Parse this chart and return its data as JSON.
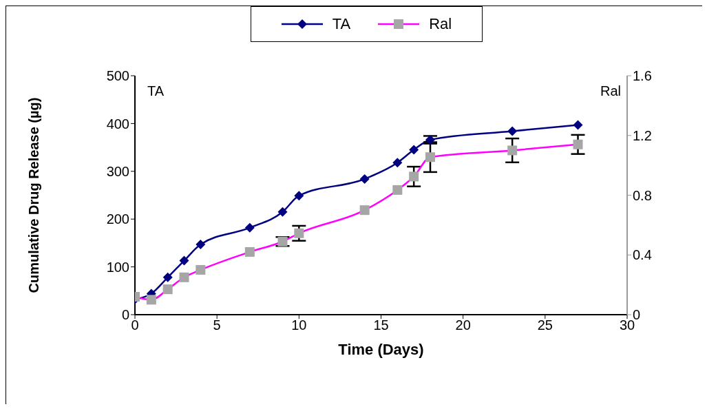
{
  "chart_data": {
    "type": "line",
    "xlabel": "Time (Days)",
    "ylabel": "Cumulative Drug Release (µg)",
    "xlim": [
      0,
      30
    ],
    "xticks": [
      0,
      5,
      10,
      15,
      20,
      25,
      30
    ],
    "ylim": [
      0,
      500
    ],
    "yticks": [
      0,
      100,
      200,
      300,
      400,
      500
    ],
    "y2lim": [
      0,
      1.6
    ],
    "y2ticks": [
      0,
      0.4,
      0.8,
      1.2,
      1.6
    ],
    "legend": "top",
    "annotations": [
      "TA",
      "Ral"
    ],
    "series": [
      {
        "name": "TA",
        "color": "#000080",
        "marker": "diamond",
        "x": [
          0,
          1,
          2,
          3,
          4,
          7,
          9,
          10,
          14,
          16,
          17,
          18,
          23,
          27
        ],
        "values": [
          32,
          44,
          78,
          113,
          147,
          182,
          215,
          249,
          284,
          318,
          345,
          366,
          384,
          397
        ],
        "errors": [
          null,
          null,
          null,
          null,
          null,
          null,
          null,
          null,
          null,
          null,
          null,
          8,
          null,
          null
        ]
      },
      {
        "name": "Ral",
        "color": "#ff00ff",
        "axis": "y2",
        "marker": "square",
        "colors": [
          "#a6a6a6",
          "#a6a6a6",
          "#a6a6a6",
          "#a6a6a6",
          "#a6a6a6",
          "#a6a6a6",
          "#a6a6a6",
          "#a6a6a6",
          "#a6a6a6",
          "#a6a6a6",
          "#a6a6a6",
          "#a6a6a6",
          "#a6a6a6",
          "#a6a6a6"
        ],
        "x": [
          0,
          1,
          2,
          3,
          4,
          7,
          9,
          10,
          14,
          16,
          17,
          18,
          23,
          27
        ],
        "values": [
          0.12,
          0.1,
          0.17,
          0.25,
          0.3,
          0.42,
          0.49,
          0.545,
          0.7,
          0.835,
          0.925,
          1.055,
          1.1,
          1.14
        ],
        "errors": [
          null,
          null,
          null,
          null,
          null,
          null,
          0.03,
          0.05,
          null,
          null,
          0.066,
          0.1,
          0.08,
          0.064
        ]
      }
    ]
  }
}
